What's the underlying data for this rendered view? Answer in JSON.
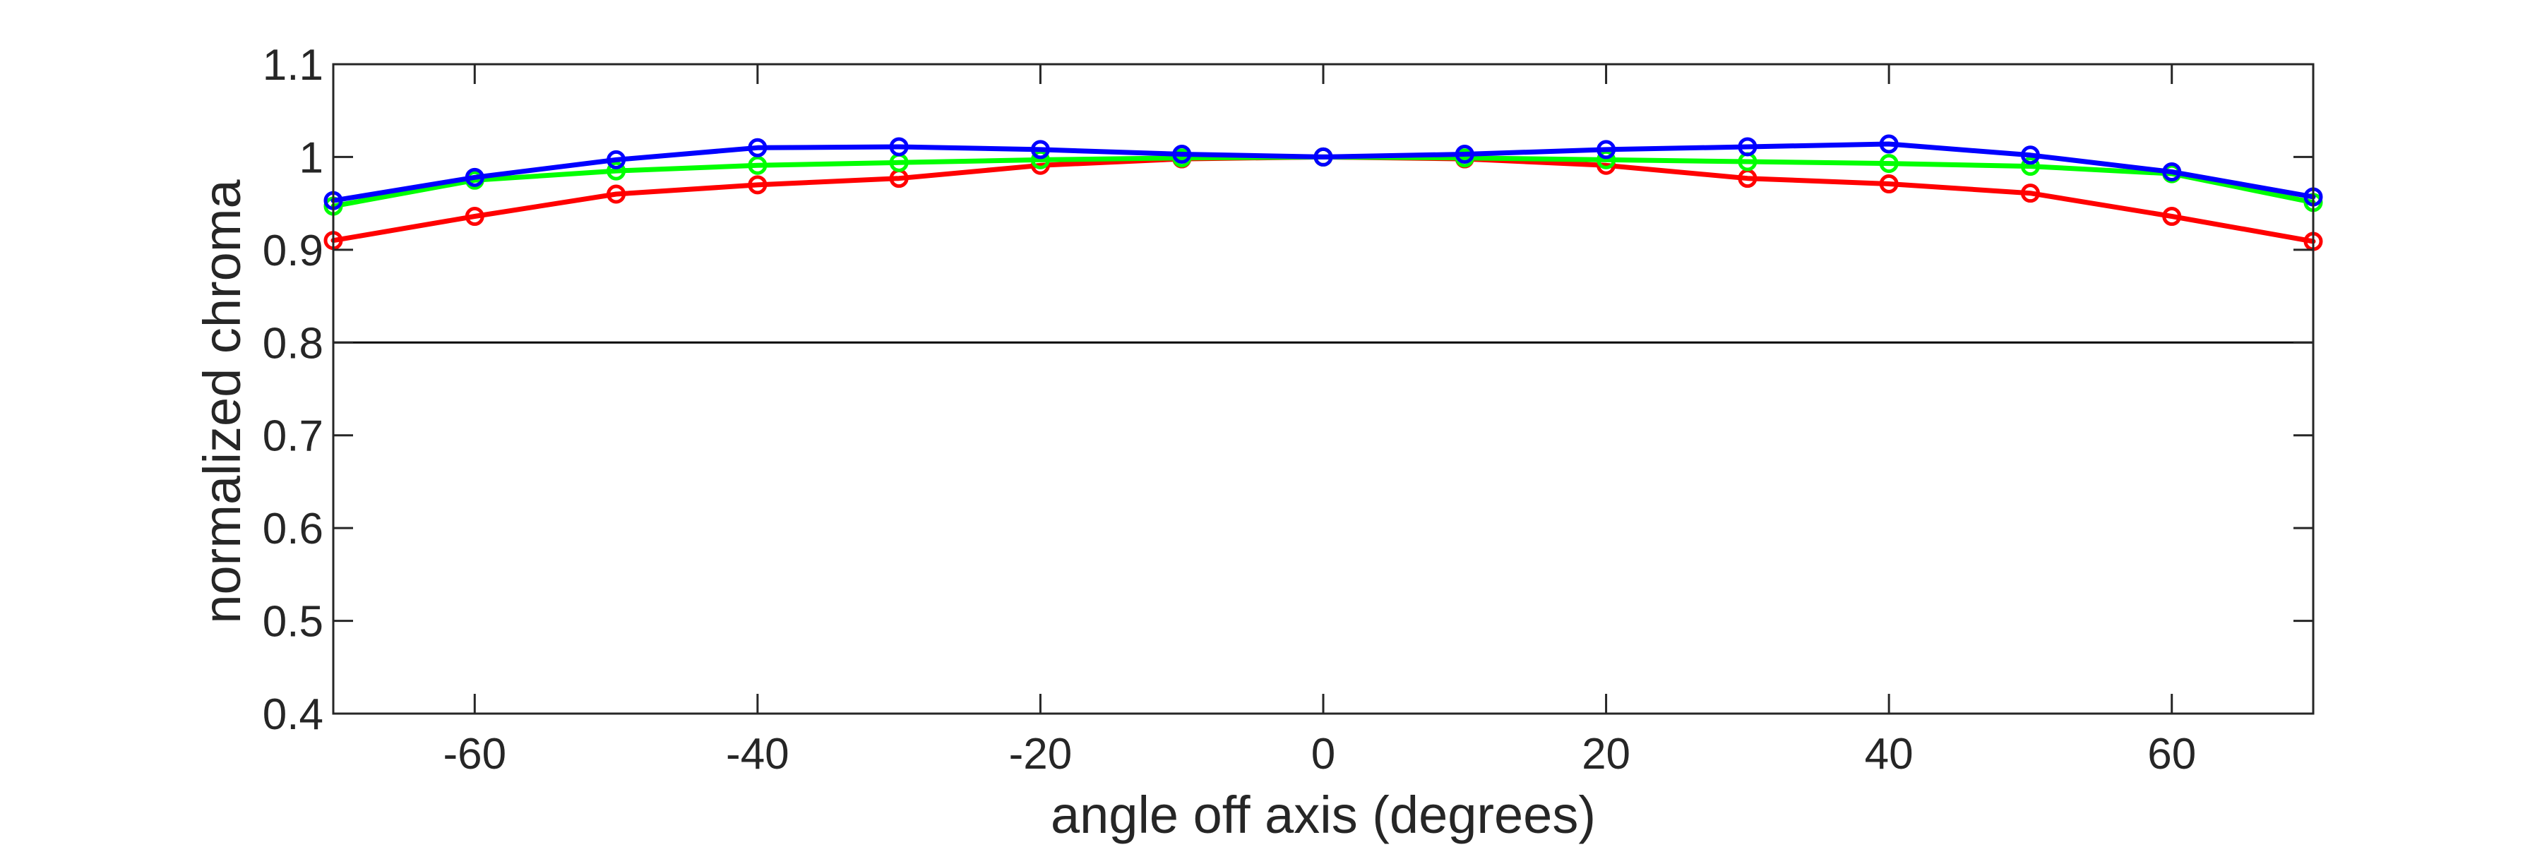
{
  "chart_data": {
    "type": "line",
    "title": "",
    "xlabel": "angle off axis (degrees)",
    "ylabel": "normalized chroma",
    "xlim": [
      -70,
      70
    ],
    "ylim": [
      0.4,
      1.1
    ],
    "x_ticks": [
      -60,
      -40,
      -20,
      0,
      20,
      40,
      60
    ],
    "x_tick_labels": [
      "-60",
      "-40",
      "-20",
      "0",
      "20",
      "40",
      "60"
    ],
    "y_ticks": [
      0.4,
      0.5,
      0.6,
      0.7,
      0.8,
      0.9,
      1.0,
      1.1
    ],
    "y_tick_labels": [
      "0.4",
      "0.5",
      "0.6",
      "0.7",
      "0.8",
      "0.9",
      "1",
      "1.1"
    ],
    "grid": false,
    "reference_lines": [
      {
        "y": 0.8,
        "color": "#000000"
      }
    ],
    "x": [
      -70,
      -60,
      -50,
      -40,
      -30,
      -20,
      -10,
      0,
      10,
      20,
      30,
      40,
      50,
      60,
      70
    ],
    "series": [
      {
        "color": "#ff0000",
        "marker": "circle",
        "values": [
          0.91,
          0.936,
          0.96,
          0.97,
          0.977,
          0.991,
          0.998,
          1.0,
          0.998,
          0.991,
          0.977,
          0.971,
          0.961,
          0.936,
          0.909
        ]
      },
      {
        "color": "#00ff00",
        "marker": "circle",
        "values": [
          0.947,
          0.975,
          0.985,
          0.991,
          0.994,
          0.997,
          0.999,
          1.0,
          0.999,
          0.997,
          0.995,
          0.993,
          0.99,
          0.982,
          0.951
        ]
      },
      {
        "color": "#0000ff",
        "marker": "circle",
        "values": [
          0.953,
          0.978,
          0.997,
          1.01,
          1.011,
          1.008,
          1.003,
          1.0,
          1.003,
          1.008,
          1.011,
          1.014,
          1.002,
          0.984,
          0.957
        ]
      }
    ]
  }
}
